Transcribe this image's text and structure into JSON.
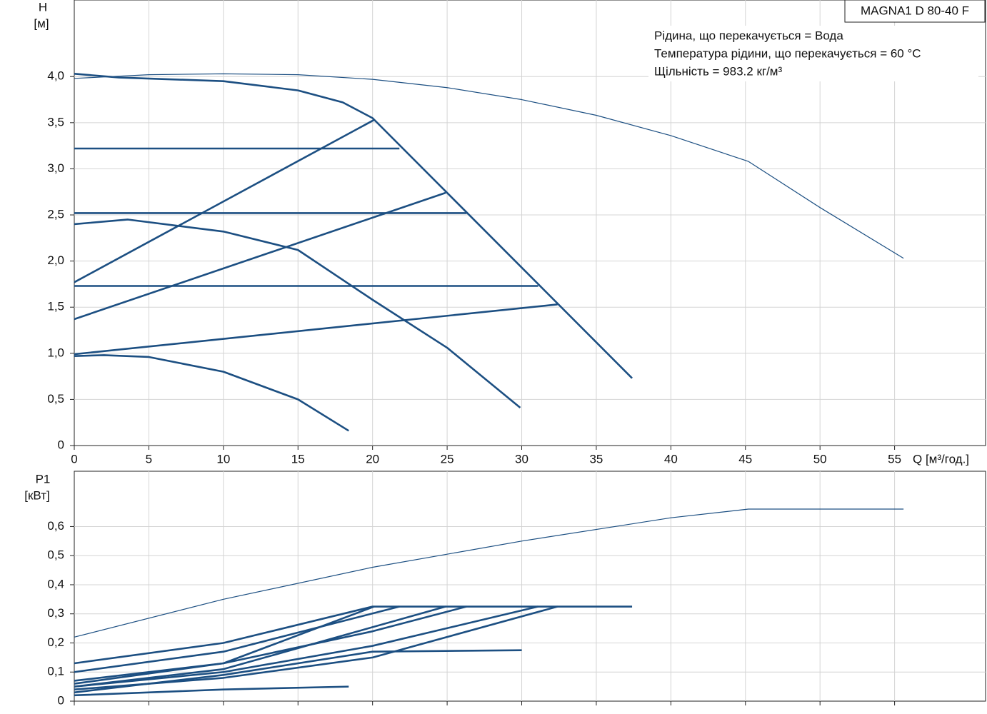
{
  "chart_data": [
    {
      "type": "line",
      "title": "MAGNA1 D 80-40 F",
      "annotations": [
        "Рідина, що перекачується = Вода",
        "Температура рідини, що перекачується = 60 °C",
        "Щільність = 983.2 кг/м³"
      ],
      "ylabel": "H",
      "yunit": "[м]",
      "xlabel": "Q [м³/год.]",
      "xlim": [
        0,
        61.1
      ],
      "xticks": [
        0,
        5,
        10,
        15,
        20,
        25,
        30,
        35,
        40,
        45,
        50,
        55
      ],
      "ylim": [
        0,
        4.83
      ],
      "yticks": [
        0,
        {
          "value": 0.5,
          "label": "0,5"
        },
        {
          "value": 1.0,
          "label": "1,0"
        },
        {
          "value": 1.5,
          "label": "1,5"
        },
        {
          "value": 2.0,
          "label": "2,0"
        },
        {
          "value": 2.5,
          "label": "2,5"
        },
        {
          "value": 3.0,
          "label": "3,0"
        },
        {
          "value": 3.5,
          "label": "3,5"
        },
        {
          "value": 4.0,
          "label": "4,0"
        }
      ],
      "grid": true,
      "color": "#1c4f82",
      "series": [
        {
          "x": [
            0,
            5,
            10,
            15,
            20,
            25,
            30,
            35,
            40,
            45.2,
            50,
            55.6
          ],
          "values": [
            3.98,
            4.02,
            4.03,
            4.02,
            3.97,
            3.88,
            3.75,
            3.58,
            3.36,
            3.08,
            2.58,
            2.03
          ]
        },
        {
          "x": [
            0,
            3,
            10,
            15,
            18,
            20,
            37.4
          ],
          "values": [
            4.03,
            3.99,
            3.95,
            3.85,
            3.72,
            3.55,
            0.73
          ]
        },
        {
          "x": [
            0,
            21.8
          ],
          "values": [
            3.22,
            3.22
          ]
        },
        {
          "x": [
            0,
            26.3
          ],
          "values": [
            2.52,
            2.52
          ]
        },
        {
          "x": [
            0,
            31.1
          ],
          "values": [
            1.73,
            1.73
          ]
        },
        {
          "x": [
            0,
            20.1
          ],
          "values": [
            1.77,
            3.53
          ]
        },
        {
          "x": [
            0,
            24.9
          ],
          "values": [
            1.37,
            2.74
          ]
        },
        {
          "x": [
            0,
            32.4
          ],
          "values": [
            0.99,
            1.53
          ]
        },
        {
          "x": [
            0,
            3.6,
            10,
            15,
            20,
            25,
            29.9
          ],
          "values": [
            2.4,
            2.45,
            2.32,
            2.12,
            1.58,
            1.06,
            0.41
          ]
        },
        {
          "x": [
            0,
            2,
            5,
            10,
            15,
            18.4
          ],
          "values": [
            0.97,
            0.98,
            0.96,
            0.8,
            0.5,
            0.16
          ]
        }
      ]
    },
    {
      "type": "line",
      "ylabel": "P1",
      "yunit": "[кВт]",
      "xlim": [
        0,
        61.1
      ],
      "xticks": [
        0,
        5,
        10,
        15,
        20,
        25,
        30,
        35,
        40,
        45,
        50,
        55
      ],
      "ylim": [
        0,
        0.79
      ],
      "yticks": [
        0,
        {
          "value": 0.1,
          "label": "0,1"
        },
        {
          "value": 0.2,
          "label": "0,2"
        },
        {
          "value": 0.3,
          "label": "0,3"
        },
        {
          "value": 0.4,
          "label": "0,4"
        },
        {
          "value": 0.5,
          "label": "0,5"
        },
        {
          "value": 0.6,
          "label": "0,6"
        }
      ],
      "grid": true,
      "color": "#1c4f82",
      "series": [
        {
          "x": [
            0,
            10,
            20,
            30,
            40,
            45.2,
            55.6
          ],
          "values": [
            0.22,
            0.35,
            0.46,
            0.55,
            0.63,
            0.66,
            0.66
          ]
        },
        {
          "x": [
            0,
            10,
            20,
            37.4
          ],
          "values": [
            0.13,
            0.2,
            0.325,
            0.325
          ]
        },
        {
          "x": [
            0,
            10,
            21.8
          ],
          "values": [
            0.1,
            0.17,
            0.325
          ]
        },
        {
          "x": [
            0,
            10,
            20,
            26.3
          ],
          "values": [
            0.07,
            0.13,
            0.24,
            0.325
          ]
        },
        {
          "x": [
            0,
            10,
            20,
            31.1
          ],
          "values": [
            0.05,
            0.1,
            0.19,
            0.325
          ]
        },
        {
          "x": [
            0,
            10,
            20,
            32.4
          ],
          "values": [
            0.04,
            0.08,
            0.15,
            0.325
          ]
        },
        {
          "x": [
            0,
            10,
            20.1
          ],
          "values": [
            0.06,
            0.13,
            0.325
          ]
        },
        {
          "x": [
            0,
            10,
            24.9
          ],
          "values": [
            0.05,
            0.11,
            0.325
          ]
        },
        {
          "x": [
            0,
            10,
            20,
            30
          ],
          "values": [
            0.03,
            0.09,
            0.17,
            0.175
          ]
        },
        {
          "x": [
            0,
            10,
            18.4
          ],
          "values": [
            0.02,
            0.04,
            0.05
          ]
        }
      ]
    }
  ]
}
